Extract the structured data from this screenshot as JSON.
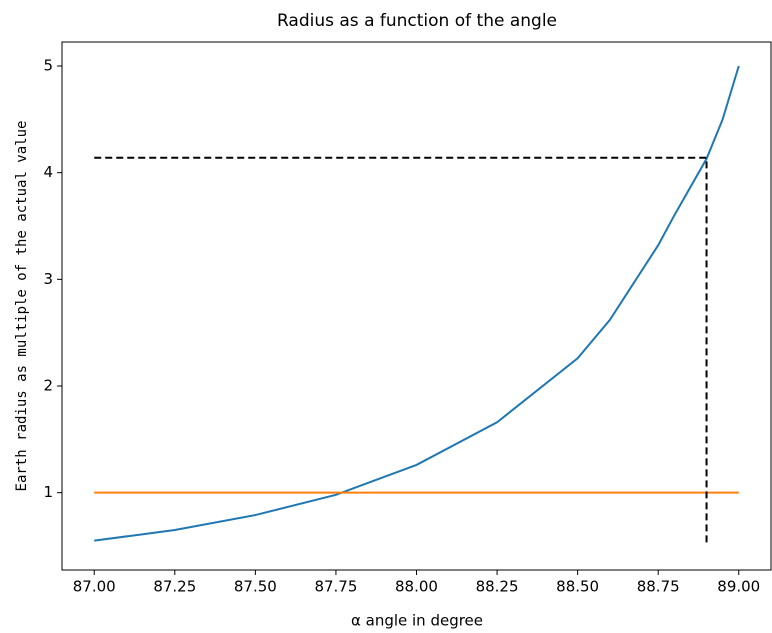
{
  "chart_data": {
    "type": "line",
    "title": "Radius as a function of the angle",
    "x_label": "α angle in degree",
    "y_label": "Earth radius as multiple of the actual value",
    "xlim": [
      86.9,
      89.1
    ],
    "ylim": [
      0.275,
      5.225
    ],
    "xticks": [
      {
        "value": 87,
        "label": "87.00"
      },
      {
        "value": 87.25,
        "label": "87.25"
      },
      {
        "value": 87.5,
        "label": "87.50"
      },
      {
        "value": 87.75,
        "label": "87.75"
      },
      {
        "value": 88,
        "label": "88.00"
      },
      {
        "value": 88.25,
        "label": "88.25"
      },
      {
        "value": 88.5,
        "label": "88.50"
      },
      {
        "value": 88.75,
        "label": "88.75"
      },
      {
        "value": 89,
        "label": "89.00"
      }
    ],
    "yticks": [
      1,
      2,
      3,
      4,
      5
    ],
    "series": [
      {
        "color": "#1f77b4",
        "dashed": false,
        "x": [
          87.0,
          87.25,
          87.5,
          87.75,
          88.0,
          88.25,
          88.5,
          88.6,
          88.75,
          88.8,
          88.9,
          88.95,
          89.0
        ],
        "values": [
          0.55,
          0.65,
          0.79,
          0.98,
          1.26,
          1.66,
          2.26,
          2.62,
          3.32,
          3.6,
          4.13,
          4.5,
          5.0
        ]
      },
      {
        "color": "#ff7f0e",
        "dashed": false,
        "x": [
          87.0,
          89.0
        ],
        "values": [
          1,
          1
        ]
      },
      {
        "color": "#000000",
        "dashed": true,
        "x": [
          87.0,
          88.9,
          88.9
        ],
        "values": [
          4.14,
          4.14,
          0.5
        ]
      }
    ]
  }
}
